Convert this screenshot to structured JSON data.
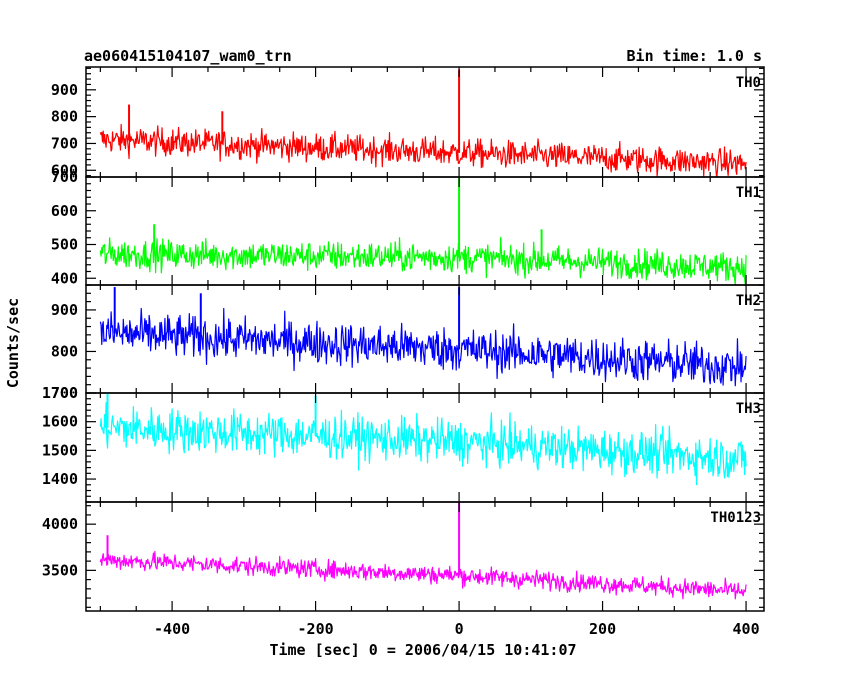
{
  "chart_data": {
    "type": "line",
    "title_left": "ae060415104107_wam0_trn",
    "title_right": "Bin time: 1.0 s",
    "xlabel": "Time [sec] 0 = 2006/04/15 10:41:07",
    "ylabel": "Counts/sec",
    "xlim": [
      -520,
      425
    ],
    "xticks": [
      -400,
      -200,
      0,
      200,
      400
    ],
    "x_range": [
      -500,
      400
    ],
    "bin_time": 1.0,
    "panels": [
      {
        "name": "TH0",
        "color": "#ff0000",
        "ylim": [
          575,
          985
        ],
        "yticks": [
          600,
          700,
          800,
          900
        ],
        "trend": [
          {
            "x": -500,
            "y": 715
          },
          {
            "x": 0,
            "y": 665
          },
          {
            "x": 400,
            "y": 625
          }
        ],
        "noise": 26,
        "peaks": [
          {
            "x": 0,
            "y": 975
          },
          {
            "x": -460,
            "y": 845
          },
          {
            "x": -330,
            "y": 820
          }
        ]
      },
      {
        "name": "TH1",
        "color": "#00ff00",
        "ylim": [
          380,
          700
        ],
        "yticks": [
          400,
          500,
          600,
          700
        ],
        "trend": [
          {
            "x": -500,
            "y": 472
          },
          {
            "x": 0,
            "y": 462
          },
          {
            "x": 400,
            "y": 432
          }
        ],
        "noise": 22,
        "peaks": [
          {
            "x": 0,
            "y": 700
          },
          {
            "x": -425,
            "y": 560
          },
          {
            "x": 115,
            "y": 545
          }
        ]
      },
      {
        "name": "TH2",
        "color": "#0000ff",
        "ylim": [
          700,
          960
        ],
        "yticks": [
          700,
          800,
          900
        ],
        "trend": [
          {
            "x": -500,
            "y": 845
          },
          {
            "x": 0,
            "y": 805
          },
          {
            "x": 400,
            "y": 762
          }
        ],
        "noise": 26,
        "peaks": [
          {
            "x": 0,
            "y": 955
          },
          {
            "x": -480,
            "y": 955
          },
          {
            "x": -360,
            "y": 940
          }
        ]
      },
      {
        "name": "TH3",
        "color": "#00ffff",
        "ylim": [
          1320,
          1700
        ],
        "yticks": [
          1400,
          1500,
          1600,
          1700
        ],
        "trend": [
          {
            "x": -500,
            "y": 1580
          },
          {
            "x": 0,
            "y": 1530
          },
          {
            "x": 400,
            "y": 1470
          }
        ],
        "noise": 38,
        "peaks": [
          {
            "x": -490,
            "y": 1700
          },
          {
            "x": -200,
            "y": 1690
          }
        ]
      },
      {
        "name": "TH0123",
        "color": "#ff00ff",
        "ylim": [
          3060,
          4240
        ],
        "yticks": [
          3500,
          4000
        ],
        "trend": [
          {
            "x": -500,
            "y": 3615
          },
          {
            "x": 0,
            "y": 3445
          },
          {
            "x": 400,
            "y": 3270
          }
        ],
        "noise": 50,
        "peaks": [
          {
            "x": 0,
            "y": 4230
          },
          {
            "x": -490,
            "y": 3880
          }
        ]
      }
    ]
  }
}
